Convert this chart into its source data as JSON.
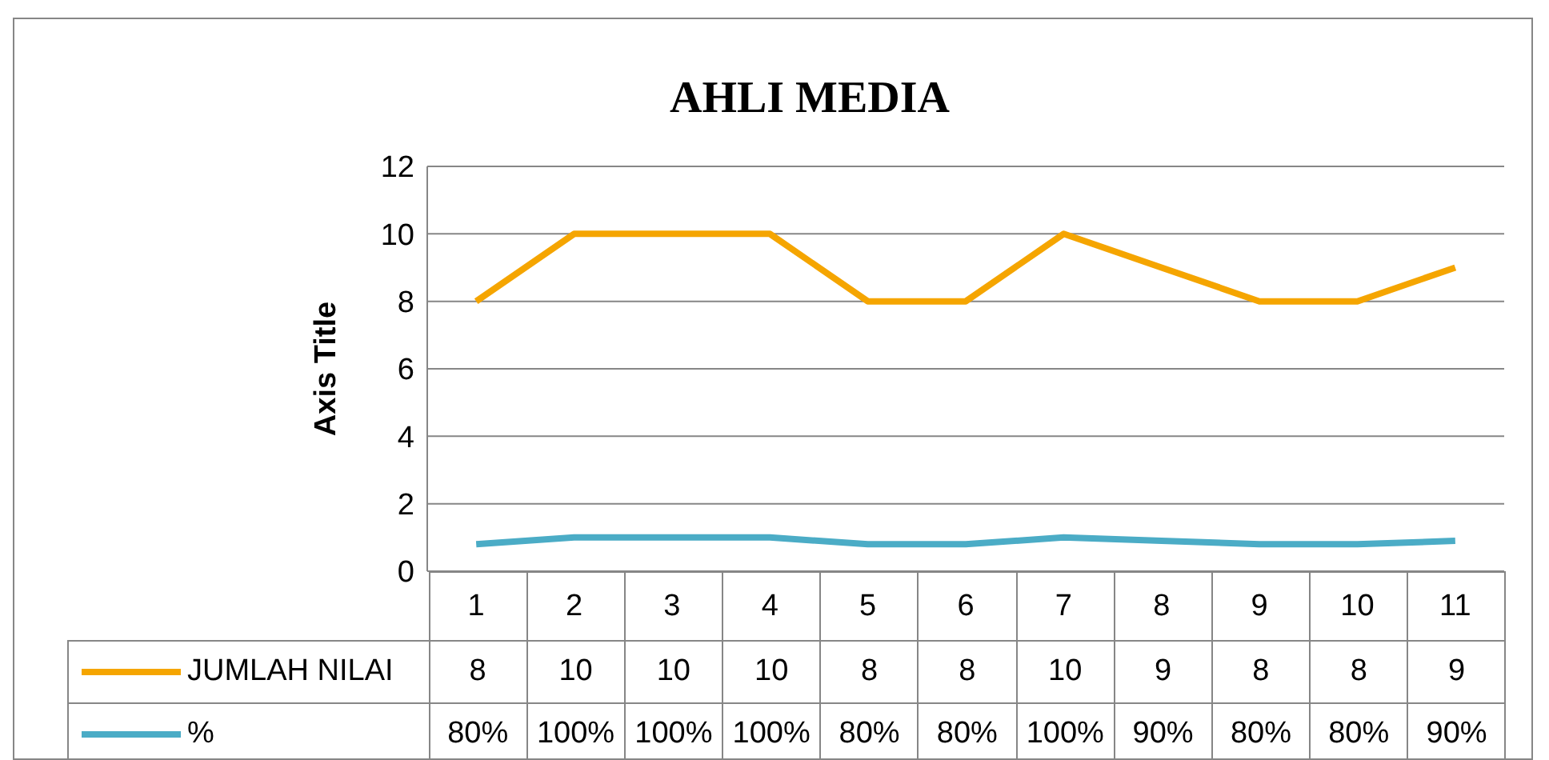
{
  "chart_data": {
    "type": "line",
    "title": "AHLI MEDIA",
    "ylabel": "Axis Title",
    "categories": [
      "1",
      "2",
      "3",
      "4",
      "5",
      "6",
      "7",
      "8",
      "9",
      "10",
      "11"
    ],
    "series": [
      {
        "name": "JUMLAH NILAI",
        "color": "#f5a500",
        "values": [
          8,
          10,
          10,
          10,
          8,
          8,
          10,
          9,
          8,
          8,
          9
        ],
        "value_labels": [
          "8",
          "10",
          "10",
          "10",
          "8",
          "8",
          "10",
          "9",
          "8",
          "8",
          "9"
        ]
      },
      {
        "name": "%",
        "color": "#4bacc6",
        "values": [
          0.8,
          1,
          1,
          1,
          0.8,
          0.8,
          1,
          0.9,
          0.8,
          0.8,
          0.9
        ],
        "value_labels": [
          "80%",
          "100%",
          "100%",
          "100%",
          "80%",
          "80%",
          "100%",
          "90%",
          "80%",
          "80%",
          "90%"
        ]
      }
    ],
    "ylim": [
      0,
      12
    ],
    "yticks": [
      0,
      2,
      4,
      6,
      8,
      10,
      12
    ],
    "grid": "y",
    "legend": "bottom"
  }
}
